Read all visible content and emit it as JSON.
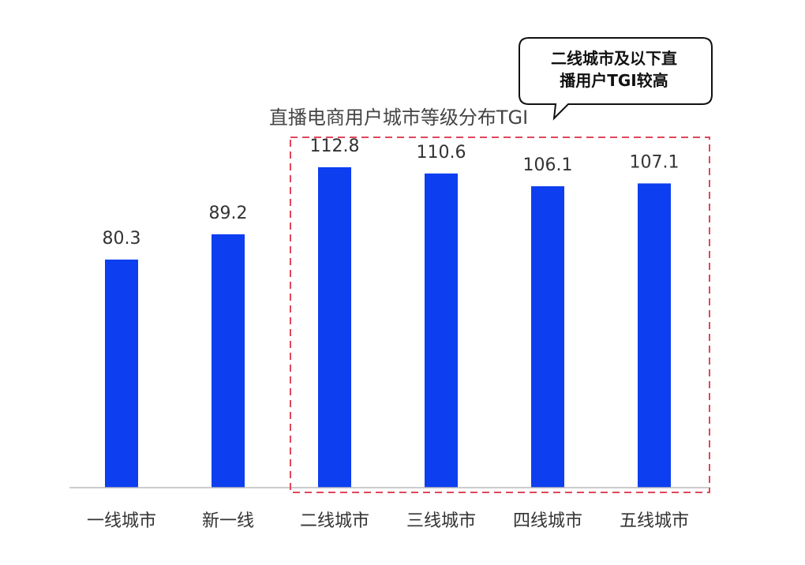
{
  "chart_data": {
    "type": "bar",
    "title": "直播电商用户城市等级分布TGI",
    "categories": [
      "一线城市",
      "新一线",
      "二线城市",
      "三线城市",
      "四线城市",
      "五线城市"
    ],
    "values": [
      80.3,
      89.2,
      112.8,
      110.6,
      106.1,
      107.1
    ],
    "ylim": [
      0,
      130
    ],
    "bar_color": "#0d3ef0",
    "grid": false,
    "highlight": {
      "categories": [
        "二线城市",
        "三线城市",
        "四线城市",
        "五线城市"
      ],
      "border_color": "#e0475a"
    },
    "annotation": {
      "lines": [
        "二线城市及以下直",
        "播用户TGI较高"
      ]
    }
  }
}
